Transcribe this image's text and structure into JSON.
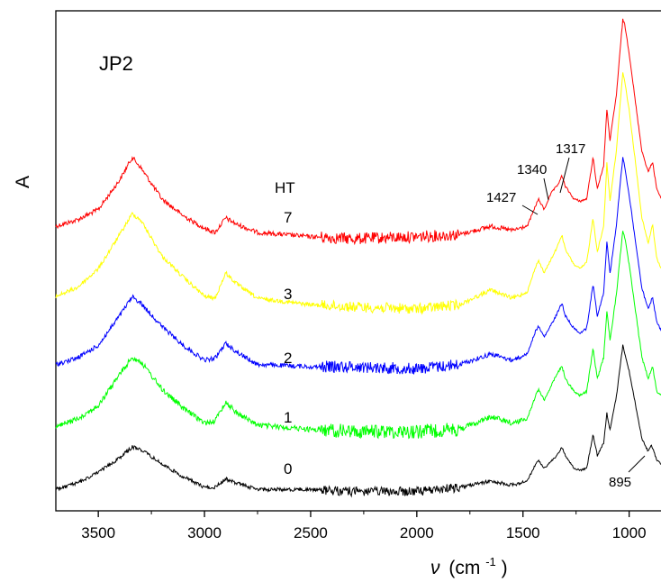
{
  "chart_data": {
    "type": "line",
    "title": "JP2",
    "xlabel": "ν (cm⁻¹)",
    "xlabel_parts": {
      "symbol": "ν",
      "unit_open": "(cm",
      "exponent": "-1",
      "unit_close": ")"
    },
    "ylabel": "A",
    "x_reversed": true,
    "xlim": [
      3700,
      850
    ],
    "x_ticks": [
      3500,
      3000,
      2500,
      2000,
      1500,
      1000
    ],
    "x_tick_labels": [
      "3500",
      "3000",
      "2500",
      "2000",
      "1500",
      "1000"
    ],
    "y_ticks_shown": false,
    "legend_title": "HT",
    "series": [
      {
        "name": "7",
        "color": "#ff0000",
        "values": [
          [
            3700,
            0.09
          ],
          [
            3600,
            0.12
          ],
          [
            3500,
            0.17
          ],
          [
            3400,
            0.31
          ],
          [
            3340,
            0.42
          ],
          [
            3300,
            0.37
          ],
          [
            3200,
            0.22
          ],
          [
            3100,
            0.14
          ],
          [
            3000,
            0.08
          ],
          [
            2950,
            0.06
          ],
          [
            2900,
            0.13
          ],
          [
            2850,
            0.1
          ],
          [
            2750,
            0.06
          ],
          [
            2500,
            0.04
          ],
          [
            2300,
            0.03
          ],
          [
            2000,
            0.04
          ],
          [
            1800,
            0.05
          ],
          [
            1650,
            0.09
          ],
          [
            1550,
            0.07
          ],
          [
            1480,
            0.09
          ],
          [
            1440,
            0.19
          ],
          [
            1427,
            0.22
          ],
          [
            1400,
            0.17
          ],
          [
            1380,
            0.22
          ],
          [
            1360,
            0.26
          ],
          [
            1340,
            0.28
          ],
          [
            1317,
            0.33
          ],
          [
            1300,
            0.28
          ],
          [
            1260,
            0.22
          ],
          [
            1230,
            0.21
          ],
          [
            1200,
            0.22
          ],
          [
            1170,
            0.42
          ],
          [
            1150,
            0.27
          ],
          [
            1120,
            0.38
          ],
          [
            1105,
            0.65
          ],
          [
            1090,
            0.5
          ],
          [
            1060,
            0.72
          ],
          [
            1030,
            1.08
          ],
          [
            1020,
            1.05
          ],
          [
            1000,
            0.92
          ],
          [
            970,
            0.68
          ],
          [
            940,
            0.45
          ],
          [
            910,
            0.35
          ],
          [
            890,
            0.4
          ],
          [
            870,
            0.27
          ],
          [
            850,
            0.22
          ]
        ]
      },
      {
        "name": "3",
        "color": "#ffff00",
        "values": [
          [
            3700,
            0.09
          ],
          [
            3600,
            0.13
          ],
          [
            3500,
            0.22
          ],
          [
            3400,
            0.38
          ],
          [
            3340,
            0.48
          ],
          [
            3300,
            0.45
          ],
          [
            3200,
            0.28
          ],
          [
            3100,
            0.18
          ],
          [
            3000,
            0.09
          ],
          [
            2950,
            0.08
          ],
          [
            2900,
            0.2
          ],
          [
            2850,
            0.15
          ],
          [
            2750,
            0.08
          ],
          [
            2500,
            0.05
          ],
          [
            2300,
            0.04
          ],
          [
            2000,
            0.03
          ],
          [
            1800,
            0.05
          ],
          [
            1650,
            0.12
          ],
          [
            1550,
            0.08
          ],
          [
            1480,
            0.11
          ],
          [
            1440,
            0.23
          ],
          [
            1427,
            0.26
          ],
          [
            1400,
            0.2
          ],
          [
            1360,
            0.28
          ],
          [
            1340,
            0.32
          ],
          [
            1317,
            0.38
          ],
          [
            1300,
            0.31
          ],
          [
            1260,
            0.24
          ],
          [
            1230,
            0.22
          ],
          [
            1200,
            0.25
          ],
          [
            1170,
            0.46
          ],
          [
            1150,
            0.3
          ],
          [
            1120,
            0.42
          ],
          [
            1105,
            0.72
          ],
          [
            1090,
            0.54
          ],
          [
            1060,
            0.78
          ],
          [
            1030,
            1.15
          ],
          [
            1020,
            1.1
          ],
          [
            1000,
            0.97
          ],
          [
            970,
            0.72
          ],
          [
            940,
            0.46
          ],
          [
            910,
            0.34
          ],
          [
            890,
            0.43
          ],
          [
            870,
            0.27
          ],
          [
            850,
            0.22
          ]
        ]
      },
      {
        "name": "2",
        "color": "#0000ff",
        "values": [
          [
            3700,
            0.04
          ],
          [
            3600,
            0.07
          ],
          [
            3500,
            0.13
          ],
          [
            3400,
            0.27
          ],
          [
            3340,
            0.36
          ],
          [
            3300,
            0.33
          ],
          [
            3200,
            0.22
          ],
          [
            3100,
            0.13
          ],
          [
            3000,
            0.06
          ],
          [
            2950,
            0.07
          ],
          [
            2900,
            0.14
          ],
          [
            2850,
            0.1
          ],
          [
            2750,
            0.04
          ],
          [
            2500,
            0.03
          ],
          [
            2300,
            0.03
          ],
          [
            2000,
            0.02
          ],
          [
            1800,
            0.04
          ],
          [
            1650,
            0.09
          ],
          [
            1550,
            0.06
          ],
          [
            1480,
            0.09
          ],
          [
            1440,
            0.2
          ],
          [
            1427,
            0.22
          ],
          [
            1400,
            0.17
          ],
          [
            1360,
            0.24
          ],
          [
            1340,
            0.28
          ],
          [
            1317,
            0.33
          ],
          [
            1300,
            0.27
          ],
          [
            1260,
            0.21
          ],
          [
            1230,
            0.19
          ],
          [
            1200,
            0.21
          ],
          [
            1170,
            0.42
          ],
          [
            1150,
            0.27
          ],
          [
            1120,
            0.38
          ],
          [
            1105,
            0.62
          ],
          [
            1090,
            0.47
          ],
          [
            1060,
            0.7
          ],
          [
            1030,
            1.02
          ],
          [
            1020,
            0.97
          ],
          [
            1000,
            0.84
          ],
          [
            970,
            0.62
          ],
          [
            940,
            0.4
          ],
          [
            910,
            0.3
          ],
          [
            890,
            0.36
          ],
          [
            870,
            0.24
          ],
          [
            850,
            0.2
          ]
        ]
      },
      {
        "name": "1",
        "color": "#00ff00",
        "values": [
          [
            3700,
            0.05
          ],
          [
            3600,
            0.09
          ],
          [
            3500,
            0.15
          ],
          [
            3400,
            0.3
          ],
          [
            3340,
            0.38
          ],
          [
            3300,
            0.36
          ],
          [
            3200,
            0.23
          ],
          [
            3100,
            0.14
          ],
          [
            3000,
            0.07
          ],
          [
            2950,
            0.08
          ],
          [
            2900,
            0.17
          ],
          [
            2850,
            0.12
          ],
          [
            2750,
            0.06
          ],
          [
            2500,
            0.04
          ],
          [
            2300,
            0.03
          ],
          [
            2000,
            0.03
          ],
          [
            1800,
            0.04
          ],
          [
            1650,
            0.1
          ],
          [
            1550,
            0.07
          ],
          [
            1480,
            0.09
          ],
          [
            1440,
            0.2
          ],
          [
            1427,
            0.23
          ],
          [
            1400,
            0.18
          ],
          [
            1360,
            0.26
          ],
          [
            1340,
            0.3
          ],
          [
            1317,
            0.34
          ],
          [
            1300,
            0.28
          ],
          [
            1260,
            0.22
          ],
          [
            1230,
            0.2
          ],
          [
            1200,
            0.22
          ],
          [
            1170,
            0.42
          ],
          [
            1150,
            0.28
          ],
          [
            1120,
            0.38
          ],
          [
            1105,
            0.6
          ],
          [
            1090,
            0.46
          ],
          [
            1060,
            0.68
          ],
          [
            1030,
            0.98
          ],
          [
            1020,
            0.94
          ],
          [
            1000,
            0.82
          ],
          [
            970,
            0.6
          ],
          [
            940,
            0.38
          ],
          [
            910,
            0.28
          ],
          [
            890,
            0.34
          ],
          [
            870,
            0.22
          ],
          [
            850,
            0.2
          ]
        ]
      },
      {
        "name": "0",
        "color": "#000000",
        "values": [
          [
            3700,
            0.02
          ],
          [
            3600,
            0.05
          ],
          [
            3500,
            0.1
          ],
          [
            3400,
            0.17
          ],
          [
            3340,
            0.22
          ],
          [
            3300,
            0.21
          ],
          [
            3200,
            0.14
          ],
          [
            3100,
            0.08
          ],
          [
            3000,
            0.03
          ],
          [
            2950,
            0.03
          ],
          [
            2900,
            0.07
          ],
          [
            2850,
            0.05
          ],
          [
            2750,
            0.02
          ],
          [
            2500,
            0.02
          ],
          [
            2300,
            0.01
          ],
          [
            2000,
            0.01
          ],
          [
            1800,
            0.03
          ],
          [
            1650,
            0.06
          ],
          [
            1550,
            0.04
          ],
          [
            1480,
            0.06
          ],
          [
            1440,
            0.14
          ],
          [
            1427,
            0.16
          ],
          [
            1400,
            0.12
          ],
          [
            1360,
            0.16
          ],
          [
            1340,
            0.18
          ],
          [
            1317,
            0.22
          ],
          [
            1300,
            0.18
          ],
          [
            1260,
            0.12
          ],
          [
            1230,
            0.11
          ],
          [
            1200,
            0.12
          ],
          [
            1170,
            0.28
          ],
          [
            1150,
            0.18
          ],
          [
            1120,
            0.24
          ],
          [
            1105,
            0.38
          ],
          [
            1090,
            0.3
          ],
          [
            1060,
            0.46
          ],
          [
            1030,
            0.7
          ],
          [
            1020,
            0.66
          ],
          [
            1000,
            0.58
          ],
          [
            970,
            0.42
          ],
          [
            940,
            0.26
          ],
          [
            910,
            0.2
          ],
          [
            895,
            0.23
          ],
          [
            870,
            0.16
          ],
          [
            850,
            0.14
          ]
        ]
      }
    ],
    "annotations": [
      {
        "text": "1427",
        "x": 1427,
        "series": "7"
      },
      {
        "text": "1340",
        "x": 1340,
        "series": "7"
      },
      {
        "text": "1317",
        "x": 1317,
        "series": "7"
      },
      {
        "text": "895",
        "x": 895,
        "series": "0"
      }
    ]
  }
}
